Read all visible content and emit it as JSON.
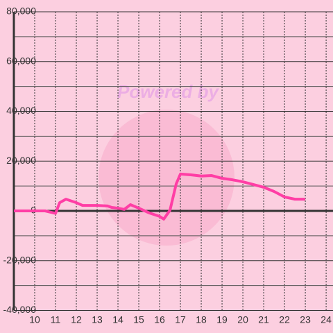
{
  "chart_data": {
    "type": "line",
    "watermark": "Powered by",
    "x": [
      9,
      10.5,
      11,
      11.2,
      11.5,
      12,
      12.3,
      13,
      13.5,
      13.7,
      14,
      14.3,
      14.6,
      15,
      15.5,
      16,
      16.2,
      16.5,
      16.8,
      17,
      17.5,
      18,
      18.5,
      19,
      19.5,
      20,
      20.5,
      21,
      21.5,
      22,
      22.5,
      23
    ],
    "series": [
      {
        "color": "#ff3ea5",
        "values": [
          0,
          0,
          -1000,
          3300,
          4700,
          3300,
          2200,
          2200,
          2000,
          1400,
          1100,
          600,
          2500,
          1100,
          -800,
          -2200,
          -3300,
          300,
          10900,
          14800,
          14500,
          14000,
          14200,
          13100,
          12500,
          11700,
          10600,
          9500,
          7800,
          5600,
          4700,
          4700
        ]
      }
    ],
    "xlim": [
      9,
      24.33
    ],
    "xticks": [
      10,
      11,
      12,
      13,
      14,
      15,
      16,
      17,
      18,
      19,
      20,
      21,
      22,
      23,
      24
    ],
    "ylim": [
      -40000,
      80000
    ],
    "yticks": [
      {
        "value": -40000,
        "label": "-40,000"
      },
      {
        "value": -20000,
        "label": "-20,000"
      },
      0,
      {
        "value": 20000,
        "label": "20,000"
      },
      {
        "value": 40000,
        "label": "40,000"
      },
      {
        "value": 60000,
        "label": "60,000"
      },
      {
        "value": 80000,
        "label": "80,000"
      }
    ],
    "yminorticks": [
      -30000,
      -10000,
      10000,
      30000,
      50000,
      70000
    ],
    "grid": true
  }
}
